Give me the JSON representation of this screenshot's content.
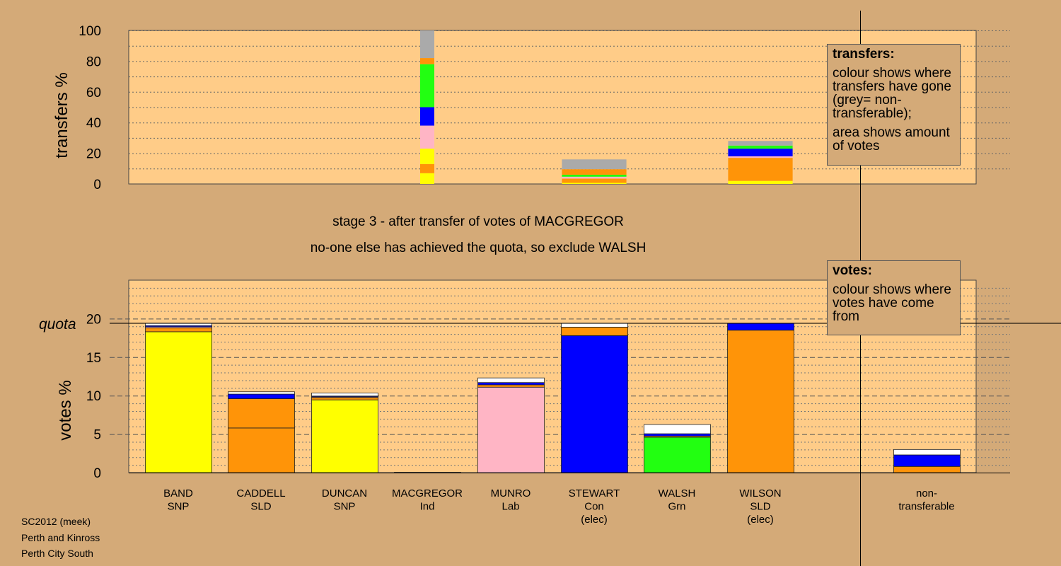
{
  "chart_data": [
    {
      "type": "bar",
      "stacked": true,
      "ylabel": "transfers %",
      "ylim": [
        0,
        100
      ],
      "yticks": [
        0,
        20,
        40,
        60,
        80,
        100
      ],
      "categories": [
        "BAND SNP",
        "CADDELL SLD",
        "DUNCAN SNP",
        "MACGREGOR Ind",
        "MUNRO Lab",
        "STEWART Con (elec)",
        "WALSH Grn",
        "WILSON SLD (elec)"
      ],
      "bars": [
        {
          "category": "MACGREGOR Ind",
          "width_factor": 1.0,
          "segments": [
            {
              "color": "#ffff00",
              "value": 7
            },
            {
              "color": "#ff9408",
              "value": 6
            },
            {
              "color": "#ffff00",
              "value": 10
            },
            {
              "color": "#ffb5c5",
              "value": 15
            },
            {
              "color": "#0000ff",
              "value": 12
            },
            {
              "color": "#22ff11",
              "value": 28
            },
            {
              "color": "#ff9408",
              "value": 4
            },
            {
              "color": "#aaaaaa",
              "value": 18
            }
          ]
        },
        {
          "category": "STEWART Con (elec)",
          "width_factor": 4.56,
          "segments": [
            {
              "color": "#ffff00",
              "value": 0.7
            },
            {
              "color": "#ff9408",
              "value": 2.8
            },
            {
              "color": "#ffb5c5",
              "value": 1.2
            },
            {
              "color": "#22ff11",
              "value": 1.3
            },
            {
              "color": "#ff9408",
              "value": 3.6
            },
            {
              "color": "#aaaaaa",
              "value": 6.4
            }
          ]
        },
        {
          "category": "WILSON SLD (elec)",
          "width_factor": 4.56,
          "segments": [
            {
              "color": "#ffff00",
              "value": 2
            },
            {
              "color": "#ff9408",
              "value": 15
            },
            {
              "color": "#ffb5c5",
              "value": 1
            },
            {
              "color": "#0000ff",
              "value": 5
            },
            {
              "color": "#22ff11",
              "value": 2
            },
            {
              "color": "#aaaaaa",
              "value": 3
            }
          ]
        }
      ]
    },
    {
      "type": "bar",
      "stacked": true,
      "ylabel": "votes %",
      "ylim": [
        0,
        25
      ],
      "yticks": [
        0,
        5,
        10,
        15,
        20
      ],
      "quota": 19.4,
      "quota_label": "quota",
      "categories": [
        "BAND SNP",
        "CADDELL SLD",
        "DUNCAN SNP",
        "MACGREGOR Ind",
        "MUNRO Lab",
        "STEWART Con (elec)",
        "WALSH Grn",
        "WILSON SLD (elec)",
        "non-transferable"
      ],
      "bars": [
        {
          "category": "BAND SNP",
          "segments": [
            {
              "color": "#ffff00",
              "value": 18.3
            },
            {
              "color": "#ff9408",
              "value": 0.5
            },
            {
              "color": "#ffb5c5",
              "value": 0.15
            },
            {
              "color": "#0000ff",
              "value": 0.15
            },
            {
              "color": "#ffffff",
              "value": 0.3
            }
          ]
        },
        {
          "category": "CADDELL SLD",
          "segments": [
            {
              "color": "#ff9408",
              "value": 5.8
            },
            {
              "color": "#ff9408",
              "value": 3.8
            },
            {
              "color": "#0000ff",
              "value": 0.6
            },
            {
              "color": "#ffffff",
              "value": 0.3
            }
          ]
        },
        {
          "category": "DUNCAN SNP",
          "segments": [
            {
              "color": "#ffff00",
              "value": 9.45
            },
            {
              "color": "#ff9408",
              "value": 0.3
            },
            {
              "color": "#ffb5c5",
              "value": 0.1
            },
            {
              "color": "#0000ff",
              "value": 0.1
            },
            {
              "color": "#ffffff",
              "value": 0.4
            }
          ]
        },
        {
          "category": "MACGREGOR Ind",
          "segments": [
            {
              "color": "#ff9408",
              "value": 0.04
            }
          ]
        },
        {
          "category": "MUNRO Lab",
          "segments": [
            {
              "color": "#ffb5c5",
              "value": 11.1
            },
            {
              "color": "#ff9408",
              "value": 0.3
            },
            {
              "color": "#0000ff",
              "value": 0.3
            },
            {
              "color": "#ffffff",
              "value": 0.6
            }
          ]
        },
        {
          "category": "STEWART Con (elec)",
          "segments": [
            {
              "color": "#0000ff",
              "value": 17.8
            },
            {
              "color": "#ff9408",
              "value": 1.1
            },
            {
              "color": "#ffffff",
              "value": 0.5
            }
          ]
        },
        {
          "category": "WALSH Grn",
          "segments": [
            {
              "color": "#22ff11",
              "value": 4.6
            },
            {
              "color": "#ff9408",
              "value": 0.15
            },
            {
              "color": "#0000ff",
              "value": 0.3
            },
            {
              "color": "#ffffff",
              "value": 1.2
            }
          ]
        },
        {
          "category": "WILSON SLD (elec)",
          "segments": [
            {
              "color": "#ff9408",
              "value": 18.5
            },
            {
              "color": "#0000ff",
              "value": 0.9
            }
          ]
        },
        {
          "category": "non-transferable",
          "segments": [
            {
              "color": "#ff9408",
              "value": 0.8
            },
            {
              "color": "#0000ff",
              "value": 1.5
            },
            {
              "color": "#ffffff",
              "value": 0.7
            }
          ]
        }
      ]
    }
  ],
  "candidate_labels": [
    {
      "lines": [
        "BAND",
        "SNP"
      ]
    },
    {
      "lines": [
        "CADDELL",
        "SLD"
      ]
    },
    {
      "lines": [
        "DUNCAN",
        "SNP"
      ]
    },
    {
      "lines": [
        "MACGREGOR",
        "Ind"
      ]
    },
    {
      "lines": [
        "MUNRO",
        "Lab"
      ]
    },
    {
      "lines": [
        "STEWART",
        "Con",
        "(elec)"
      ]
    },
    {
      "lines": [
        "WALSH",
        "Grn"
      ]
    },
    {
      "lines": [
        "WILSON",
        "SLD",
        "(elec)"
      ]
    },
    {
      "lines": [
        "non-",
        "transferable"
      ]
    }
  ],
  "stage_text": {
    "line1": "stage 3 - after transfer of votes of MACGREGOR",
    "line2": "no-one else has achieved the quota, so exclude WALSH"
  },
  "transfers_legend": {
    "title": "transfers:",
    "text1": "colour shows where transfers have gone (grey= non-transferable);",
    "text2": "area shows amount of votes"
  },
  "votes_legend": {
    "title": "votes:",
    "text1": "colour shows where votes have come from"
  },
  "footer": {
    "line1": "SC2012 (meek)",
    "line2": "Perth and Kinross",
    "line3": "Perth City South"
  },
  "colors": {
    "background": "#d4aa78",
    "plot_background": "#ffcc88",
    "snp": "#ffff00",
    "sld": "#ff9408",
    "lab": "#ffb5c5",
    "con": "#0000ff",
    "grn": "#22ff11",
    "non_transferable": "#aaaaaa"
  }
}
